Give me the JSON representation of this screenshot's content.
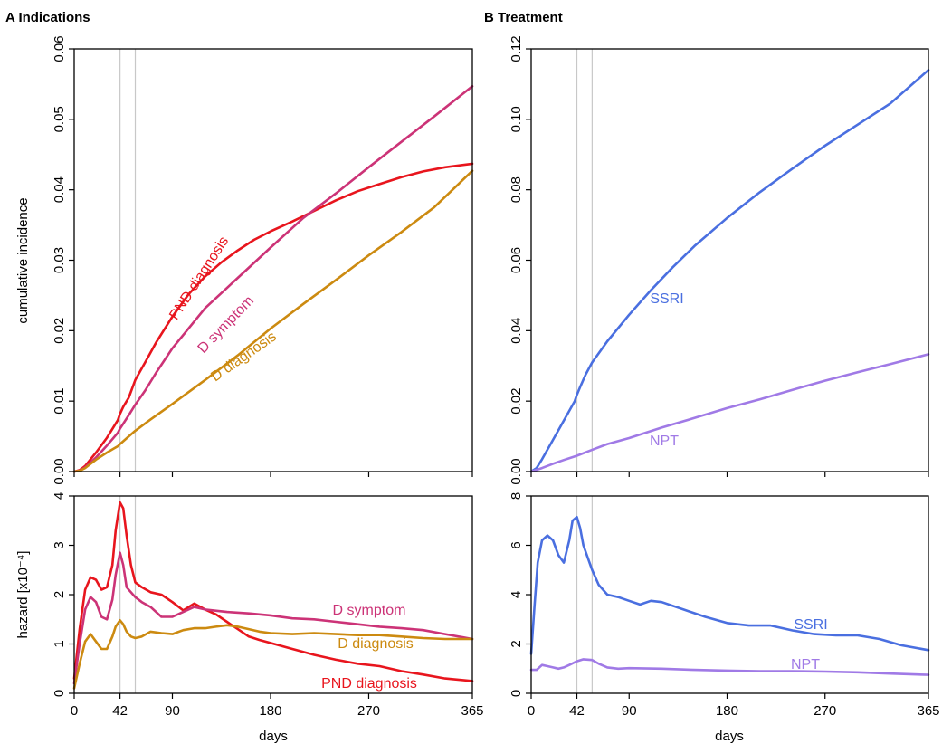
{
  "figure": {
    "panel_a_title": "A Indications",
    "panel_b_title": "B Treatment",
    "xlabel": "days",
    "ylabel_top": "cumulative incidence",
    "ylabel_bottom": "hazard [x10⁻⁴]"
  },
  "colors": {
    "PND diagnosis": "#e8151d",
    "D symptom": "#cc3377",
    "D diagnosis": "#cc8a10",
    "SSRI": "#4a6fe0",
    "NPT": "#a07ae6",
    "reference_line": "#c8c8c8"
  },
  "chart_data": [
    {
      "type": "line",
      "panel": "A top",
      "title": "A Indications",
      "xlabel": "",
      "ylabel": "cumulative incidence",
      "xlim": [
        0,
        365
      ],
      "ylim": [
        0,
        0.06
      ],
      "xticks": [
        0,
        42,
        90,
        180,
        270,
        365
      ],
      "yticks": [
        "0.00",
        "0.01",
        "0.02",
        "0.03",
        "0.04",
        "0.05",
        "0.06"
      ],
      "vlines": [
        42,
        56
      ],
      "series": [
        {
          "name": "PND diagnosis",
          "x": [
            0,
            5,
            10,
            20,
            30,
            40,
            42,
            45,
            50,
            56,
            65,
            75,
            90,
            105,
            120,
            135,
            150,
            165,
            180,
            200,
            220,
            240,
            260,
            280,
            300,
            320,
            340,
            365
          ],
          "y": [
            0,
            0.0002,
            0.0008,
            0.0027,
            0.0048,
            0.0073,
            0.0082,
            0.0092,
            0.0105,
            0.013,
            0.0155,
            0.0183,
            0.022,
            0.0252,
            0.0277,
            0.0297,
            0.0314,
            0.0329,
            0.0341,
            0.0355,
            0.037,
            0.0385,
            0.0398,
            0.0408,
            0.0418,
            0.0426,
            0.0432,
            0.0437
          ]
        },
        {
          "name": "D symptom",
          "x": [
            0,
            5,
            10,
            20,
            30,
            40,
            42,
            45,
            50,
            56,
            65,
            75,
            90,
            120,
            150,
            180,
            210,
            240,
            270,
            300,
            330,
            365
          ],
          "y": [
            0,
            0.0001,
            0.0006,
            0.002,
            0.0037,
            0.0055,
            0.0061,
            0.0068,
            0.008,
            0.0095,
            0.0115,
            0.014,
            0.0175,
            0.0232,
            0.0275,
            0.0318,
            0.036,
            0.0395,
            0.0432,
            0.0468,
            0.0504,
            0.0547
          ]
        },
        {
          "name": "D diagnosis",
          "x": [
            0,
            5,
            10,
            20,
            30,
            40,
            42,
            45,
            50,
            56,
            70,
            90,
            120,
            150,
            180,
            210,
            240,
            270,
            300,
            330,
            365
          ],
          "y": [
            0,
            0.0001,
            0.0005,
            0.0017,
            0.0027,
            0.0036,
            0.0039,
            0.0043,
            0.005,
            0.0058,
            0.0074,
            0.0096,
            0.013,
            0.0165,
            0.0203,
            0.0238,
            0.0272,
            0.0307,
            0.034,
            0.0375,
            0.0427
          ]
        }
      ]
    },
    {
      "type": "line",
      "panel": "B top",
      "title": "B Treatment",
      "xlabel": "",
      "ylabel": "",
      "xlim": [
        0,
        365
      ],
      "ylim": [
        0,
        0.12
      ],
      "xticks": [
        0,
        42,
        90,
        180,
        270,
        365
      ],
      "yticks": [
        "0.00",
        "0.02",
        "0.04",
        "0.06",
        "0.08",
        "0.10",
        "0.12"
      ],
      "vlines": [
        42,
        56
      ],
      "series": [
        {
          "name": "SSRI",
          "x": [
            0,
            5,
            10,
            20,
            30,
            40,
            42,
            45,
            50,
            56,
            70,
            90,
            110,
            130,
            150,
            180,
            210,
            240,
            270,
            300,
            330,
            365
          ],
          "y": [
            0,
            0.001,
            0.0035,
            0.009,
            0.0145,
            0.02,
            0.0218,
            0.024,
            0.0275,
            0.031,
            0.037,
            0.0445,
            0.0515,
            0.058,
            0.064,
            0.072,
            0.0793,
            0.086,
            0.0925,
            0.0985,
            0.1045,
            0.114
          ]
        },
        {
          "name": "NPT",
          "x": [
            0,
            10,
            20,
            30,
            42,
            56,
            70,
            90,
            120,
            150,
            180,
            210,
            240,
            270,
            300,
            330,
            365
          ],
          "y": [
            0,
            0.001,
            0.0022,
            0.0033,
            0.0045,
            0.0062,
            0.0078,
            0.0095,
            0.0125,
            0.0152,
            0.018,
            0.0205,
            0.0232,
            0.0258,
            0.0282,
            0.0305,
            0.0333
          ]
        }
      ]
    },
    {
      "type": "line",
      "panel": "A bottom",
      "title": "",
      "xlabel": "days",
      "ylabel": "hazard [x10⁻⁴]",
      "xlim": [
        0,
        365
      ],
      "ylim": [
        0,
        4
      ],
      "xticks": [
        0,
        42,
        90,
        180,
        270,
        365
      ],
      "yticks": [
        "0",
        "1",
        "2",
        "3",
        "4"
      ],
      "vlines": [
        42,
        56
      ],
      "series": [
        {
          "name": "PND diagnosis",
          "x": [
            0,
            5,
            10,
            15,
            20,
            25,
            30,
            35,
            38,
            42,
            45,
            48,
            52,
            56,
            62,
            70,
            80,
            90,
            100,
            110,
            120,
            130,
            140,
            150,
            160,
            170,
            180,
            200,
            220,
            240,
            260,
            280,
            300,
            320,
            340,
            365
          ],
          "y": [
            0.3,
            1.3,
            2.1,
            2.35,
            2.3,
            2.1,
            2.15,
            2.6,
            3.3,
            3.87,
            3.75,
            3.2,
            2.6,
            2.25,
            2.15,
            2.05,
            2.0,
            1.85,
            1.68,
            1.82,
            1.7,
            1.6,
            1.45,
            1.3,
            1.15,
            1.08,
            1.02,
            0.9,
            0.78,
            0.68,
            0.6,
            0.55,
            0.45,
            0.38,
            0.3,
            0.25
          ]
        },
        {
          "name": "D symptom",
          "x": [
            0,
            5,
            10,
            15,
            20,
            25,
            30,
            35,
            38,
            42,
            45,
            48,
            52,
            56,
            62,
            70,
            80,
            90,
            100,
            110,
            120,
            140,
            160,
            180,
            200,
            220,
            240,
            260,
            280,
            300,
            320,
            340,
            365
          ],
          "y": [
            0.2,
            1.0,
            1.7,
            1.95,
            1.85,
            1.55,
            1.5,
            1.9,
            2.4,
            2.85,
            2.6,
            2.15,
            2.05,
            1.95,
            1.85,
            1.75,
            1.55,
            1.55,
            1.65,
            1.75,
            1.7,
            1.65,
            1.62,
            1.58,
            1.52,
            1.5,
            1.45,
            1.4,
            1.35,
            1.32,
            1.28,
            1.2,
            1.1
          ]
        },
        {
          "name": "D diagnosis",
          "x": [
            0,
            5,
            10,
            15,
            20,
            25,
            30,
            35,
            38,
            42,
            45,
            48,
            52,
            56,
            62,
            70,
            80,
            90,
            100,
            110,
            120,
            130,
            140,
            150,
            160,
            170,
            180,
            200,
            220,
            240,
            260,
            280,
            300,
            320,
            340,
            365
          ],
          "y": [
            0.1,
            0.6,
            1.05,
            1.2,
            1.05,
            0.9,
            0.9,
            1.15,
            1.35,
            1.48,
            1.4,
            1.25,
            1.15,
            1.12,
            1.15,
            1.25,
            1.22,
            1.2,
            1.28,
            1.32,
            1.32,
            1.35,
            1.38,
            1.35,
            1.3,
            1.25,
            1.22,
            1.2,
            1.22,
            1.2,
            1.18,
            1.18,
            1.15,
            1.12,
            1.1,
            1.1
          ]
        }
      ]
    },
    {
      "type": "line",
      "panel": "B bottom",
      "title": "",
      "xlabel": "days",
      "ylabel": "",
      "xlim": [
        0,
        365
      ],
      "ylim": [
        0,
        8
      ],
      "xticks": [
        0,
        42,
        90,
        180,
        270,
        365
      ],
      "yticks": [
        "0",
        "2",
        "4",
        "6",
        "8"
      ],
      "vlines": [
        42,
        56
      ],
      "series": [
        {
          "name": "SSRI",
          "x": [
            0,
            3,
            6,
            10,
            15,
            20,
            25,
            30,
            35,
            38,
            42,
            45,
            48,
            52,
            56,
            62,
            70,
            80,
            90,
            100,
            110,
            120,
            140,
            160,
            180,
            200,
            220,
            240,
            260,
            280,
            300,
            320,
            340,
            365
          ],
          "y": [
            1.6,
            3.5,
            5.3,
            6.2,
            6.4,
            6.2,
            5.6,
            5.3,
            6.2,
            7.0,
            7.15,
            6.7,
            6.0,
            5.5,
            5.0,
            4.4,
            4.0,
            3.9,
            3.75,
            3.6,
            3.75,
            3.7,
            3.4,
            3.1,
            2.85,
            2.75,
            2.75,
            2.55,
            2.4,
            2.35,
            2.35,
            2.2,
            1.95,
            1.75
          ]
        },
        {
          "name": "NPT",
          "x": [
            0,
            5,
            10,
            15,
            20,
            25,
            30,
            35,
            42,
            48,
            56,
            62,
            70,
            80,
            90,
            120,
            150,
            180,
            210,
            240,
            270,
            300,
            330,
            365
          ],
          "y": [
            0.95,
            0.95,
            1.15,
            1.1,
            1.05,
            1.0,
            1.05,
            1.15,
            1.3,
            1.38,
            1.35,
            1.2,
            1.05,
            1.0,
            1.02,
            1.0,
            0.95,
            0.92,
            0.9,
            0.9,
            0.88,
            0.85,
            0.8,
            0.75
          ]
        }
      ]
    }
  ],
  "series_labels": {
    "A top": [
      "PND diagnosis",
      "D symptom",
      "D diagnosis"
    ],
    "B top": [
      "SSRI",
      "NPT"
    ],
    "A bottom": [
      "D symptom",
      "D diagnosis",
      "PND diagnosis"
    ],
    "B bottom": [
      "SSRI",
      "NPT"
    ]
  }
}
